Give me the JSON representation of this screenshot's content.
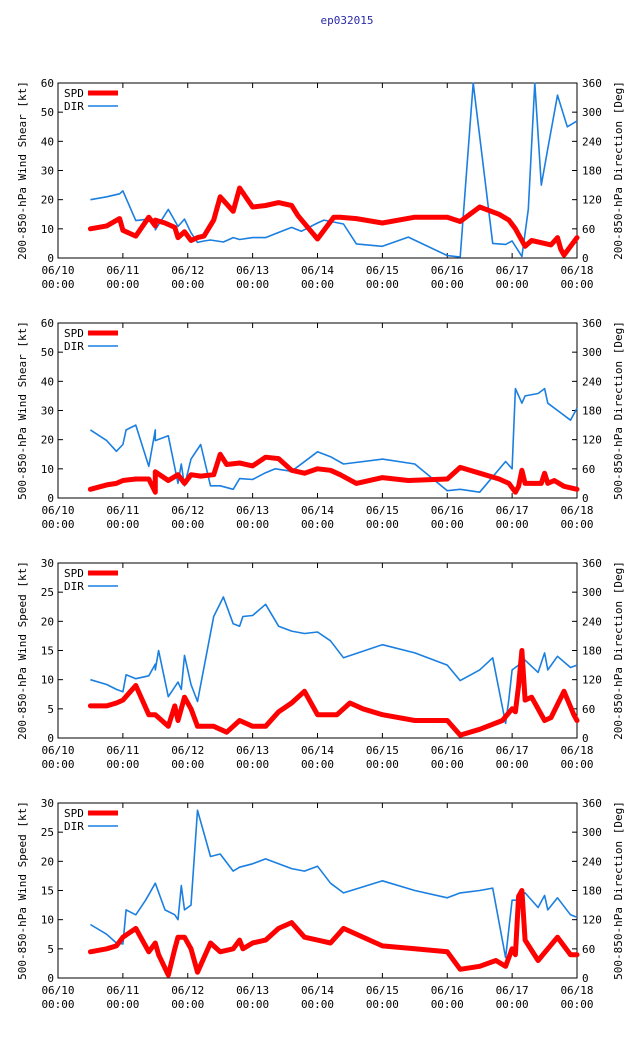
{
  "page_title": "ep032015",
  "colors": {
    "spd": "#ff0000",
    "dir": "#1a7fe0",
    "title": "#2a2aa8"
  },
  "chart_data": [
    {
      "type": "line",
      "ylabel": "200-850-hPa Wind Shear [kt]",
      "y2label": "200-850-hPa Direction [Deg]",
      "ylim": [
        0,
        60
      ],
      "yticks": [
        0,
        10,
        20,
        30,
        40,
        50,
        60
      ],
      "y2lim": [
        0,
        360
      ],
      "y2ticks": [
        0,
        60,
        120,
        180,
        240,
        300,
        360
      ],
      "xlim": [
        0,
        8
      ],
      "xtick_dates": [
        "06/10",
        "06/11",
        "06/12",
        "06/13",
        "06/14",
        "06/15",
        "06/16",
        "06/17",
        "06/18"
      ],
      "xtick_time": "00:00",
      "legend": [
        "SPD",
        "DIR"
      ],
      "series": [
        {
          "name": "SPD",
          "axis": "left",
          "x": [
            0.5,
            0.75,
            0.95,
            1.0,
            1.2,
            1.4,
            1.5,
            1.5,
            1.65,
            1.8,
            1.85,
            1.95,
            2.05,
            2.15,
            2.25,
            2.4,
            2.5,
            2.7,
            2.8,
            3.0,
            3.2,
            3.4,
            3.6,
            3.7,
            4.0,
            4.25,
            4.35,
            4.6,
            5.0,
            5.5,
            6.0,
            6.2,
            6.5,
            6.8,
            6.95,
            7.05,
            7.2,
            7.3,
            7.5,
            7.6,
            7.7,
            7.75,
            7.8,
            8.0
          ],
          "y": [
            10,
            11,
            13.5,
            9.5,
            7.5,
            14,
            11,
            13,
            12,
            10.5,
            7,
            9,
            6,
            7,
            7.5,
            13,
            21,
            16,
            24,
            17.5,
            18,
            19,
            18,
            14.5,
            6.5,
            14,
            14,
            13.5,
            12,
            14,
            14,
            12.5,
            17.5,
            15,
            13,
            10,
            4,
            6,
            5,
            4.5,
            7,
            3,
            1,
            7
          ]
        },
        {
          "name": "DIR",
          "axis": "right",
          "x": [
            0.5,
            0.75,
            0.95,
            1.0,
            1.2,
            1.4,
            1.5,
            1.5,
            1.7,
            1.85,
            1.95,
            2.05,
            2.15,
            2.25,
            2.35,
            2.55,
            2.7,
            2.8,
            3.0,
            3.2,
            3.35,
            3.6,
            3.75,
            4.0,
            4.1,
            4.4,
            4.6,
            5.0,
            5.4,
            6.0,
            6.2,
            6.4,
            6.7,
            6.9,
            7.0,
            7.15,
            7.25,
            7.35,
            7.45,
            7.55,
            7.7,
            7.85,
            8.0
          ],
          "y": [
            120,
            126,
            132,
            138,
            77,
            80,
            63,
            58,
            100,
            65,
            80,
            52,
            32,
            35,
            37,
            33,
            42,
            38,
            42,
            42,
            50,
            63,
            55,
            72,
            78,
            70,
            29,
            24,
            43,
            5,
            2,
            360,
            30,
            28,
            35,
            3,
            100,
            360,
            150,
            225,
            335,
            270,
            282
          ]
        }
      ]
    },
    {
      "type": "line",
      "ylabel": "500-850-hPa Wind Shear [kt]",
      "y2label": "500-850-hPa Direction [Deg]",
      "ylim": [
        0,
        60
      ],
      "yticks": [
        0,
        10,
        20,
        30,
        40,
        50,
        60
      ],
      "y2lim": [
        0,
        360
      ],
      "y2ticks": [
        0,
        60,
        120,
        180,
        240,
        300,
        360
      ],
      "xlim": [
        0,
        8
      ],
      "xtick_dates": [
        "06/10",
        "06/11",
        "06/12",
        "06/13",
        "06/14",
        "06/15",
        "06/16",
        "06/17",
        "06/18"
      ],
      "xtick_time": "00:00",
      "legend": [
        "SPD",
        "DIR"
      ],
      "series": [
        {
          "name": "SPD",
          "axis": "left",
          "x": [
            0.5,
            0.75,
            0.9,
            1.0,
            1.2,
            1.4,
            1.5,
            1.5,
            1.7,
            1.85,
            1.95,
            2.05,
            2.2,
            2.4,
            2.5,
            2.6,
            2.8,
            3.0,
            3.2,
            3.4,
            3.6,
            3.8,
            4.0,
            4.2,
            4.35,
            4.6,
            5.0,
            5.4,
            6.0,
            6.2,
            6.5,
            6.8,
            6.95,
            7.05,
            7.1,
            7.15,
            7.2,
            7.3,
            7.45,
            7.5,
            7.55,
            7.65,
            7.8,
            8.0
          ],
          "y": [
            3,
            4.5,
            5,
            6,
            6.5,
            6.5,
            2,
            9,
            6,
            8,
            5,
            8,
            7.5,
            8,
            15,
            11.5,
            12,
            11,
            14,
            13.5,
            9.5,
            8.5,
            10,
            9.5,
            8,
            5,
            7,
            6,
            6.5,
            10.5,
            8.5,
            6.5,
            5,
            2,
            4,
            9.5,
            5,
            5,
            5,
            8.5,
            5,
            6,
            4,
            3
          ]
        },
        {
          "name": "DIR",
          "axis": "right",
          "x": [
            0.5,
            0.75,
            0.9,
            1.0,
            1.05,
            1.2,
            1.4,
            1.5,
            1.5,
            1.7,
            1.85,
            1.9,
            1.95,
            2.05,
            2.2,
            2.35,
            2.5,
            2.7,
            2.8,
            3.0,
            3.2,
            3.35,
            3.6,
            4.0,
            4.2,
            4.4,
            5.0,
            5.5,
            6.0,
            6.2,
            6.5,
            6.9,
            7.0,
            7.05,
            7.15,
            7.2,
            7.4,
            7.5,
            7.55,
            7.75,
            7.9,
            8.0
          ],
          "y": [
            140,
            118,
            96,
            110,
            140,
            150,
            65,
            140,
            118,
            128,
            30,
            70,
            25,
            80,
            110,
            25,
            25,
            18,
            40,
            38,
            52,
            60,
            55,
            95,
            85,
            70,
            80,
            70,
            15,
            18,
            12,
            75,
            60,
            225,
            195,
            210,
            215,
            225,
            195,
            175,
            160,
            185
          ]
        }
      ]
    },
    {
      "type": "line",
      "ylabel": "200-850-hPa Wind Speed [kt]",
      "y2label": "200-850-hPa Direction [Deg]",
      "ylim": [
        0,
        30
      ],
      "yticks": [
        0,
        5,
        10,
        15,
        20,
        25,
        30
      ],
      "y2lim": [
        0,
        360
      ],
      "y2ticks": [
        0,
        60,
        120,
        180,
        240,
        300,
        360
      ],
      "xlim": [
        0,
        8
      ],
      "xtick_dates": [
        "06/10",
        "06/11",
        "06/12",
        "06/13",
        "06/14",
        "06/15",
        "06/16",
        "06/17",
        "06/18"
      ],
      "xtick_time": "00:00",
      "legend": [
        "SPD",
        "DIR"
      ],
      "series": [
        {
          "name": "SPD",
          "axis": "left",
          "x": [
            0.5,
            0.75,
            0.9,
            1.0,
            1.2,
            1.4,
            1.5,
            1.55,
            1.7,
            1.8,
            1.85,
            1.95,
            2.05,
            2.15,
            2.4,
            2.6,
            2.7,
            2.8,
            3.0,
            3.2,
            3.4,
            3.6,
            3.8,
            4.0,
            4.3,
            4.5,
            4.7,
            5.0,
            5.5,
            6.0,
            6.2,
            6.5,
            6.85,
            7.0,
            7.05,
            7.1,
            7.15,
            7.2,
            7.3,
            7.5,
            7.6,
            7.8,
            7.95,
            8.0
          ],
          "y": [
            5.5,
            5.5,
            6,
            6.5,
            9,
            4,
            4,
            3.5,
            2,
            5.5,
            3,
            7,
            5,
            2,
            2,
            1,
            2,
            3,
            2,
            2,
            4.5,
            6,
            8,
            4,
            4,
            6,
            5,
            4,
            3,
            3,
            0.5,
            1.5,
            3,
            5,
            4.5,
            9,
            15,
            6.5,
            7,
            3,
            3.5,
            8,
            4,
            3
          ]
        },
        {
          "name": "DIR",
          "axis": "right",
          "x": [
            0.5,
            0.75,
            0.9,
            1.0,
            1.05,
            1.2,
            1.4,
            1.5,
            1.5,
            1.55,
            1.7,
            1.85,
            1.9,
            1.95,
            2.05,
            2.15,
            2.4,
            2.55,
            2.7,
            2.8,
            2.85,
            3.0,
            3.2,
            3.4,
            3.6,
            3.8,
            4.0,
            4.2,
            4.4,
            5.0,
            5.5,
            6.0,
            6.2,
            6.5,
            6.7,
            6.9,
            6.95,
            7.0,
            7.05,
            7.1,
            7.15,
            7.2,
            7.4,
            7.5,
            7.55,
            7.7,
            7.9,
            8.0
          ],
          "y": [
            120,
            110,
            100,
            95,
            130,
            122,
            128,
            152,
            140,
            180,
            85,
            115,
            100,
            170,
            110,
            75,
            250,
            290,
            235,
            230,
            250,
            252,
            275,
            230,
            220,
            215,
            218,
            200,
            165,
            192,
            175,
            150,
            118,
            140,
            165,
            30,
            80,
            140,
            145,
            150,
            165,
            160,
            135,
            175,
            140,
            168,
            145,
            150
          ]
        }
      ]
    },
    {
      "type": "line",
      "ylabel": "500-850-hPa Wind Speed [kt]",
      "y2label": "500-850-hPa Direction [Deg]",
      "ylim": [
        0,
        30
      ],
      "yticks": [
        0,
        5,
        10,
        15,
        20,
        25,
        30
      ],
      "y2lim": [
        0,
        360
      ],
      "y2ticks": [
        0,
        60,
        120,
        180,
        240,
        300,
        360
      ],
      "xlim": [
        0,
        8
      ],
      "xtick_dates": [
        "06/10",
        "06/11",
        "06/12",
        "06/13",
        "06/14",
        "06/15",
        "06/16",
        "06/17",
        "06/18"
      ],
      "xtick_time": "00:00",
      "legend": [
        "SPD",
        "DIR"
      ],
      "series": [
        {
          "name": "SPD",
          "axis": "left",
          "x": [
            0.5,
            0.75,
            0.9,
            1.0,
            1.2,
            1.4,
            1.5,
            1.55,
            1.7,
            1.8,
            1.85,
            1.95,
            2.05,
            2.15,
            2.35,
            2.5,
            2.7,
            2.8,
            2.85,
            3.0,
            3.2,
            3.4,
            3.6,
            3.8,
            4.0,
            4.2,
            4.4,
            5.0,
            5.5,
            6.0,
            6.2,
            6.5,
            6.75,
            6.9,
            7.0,
            7.05,
            7.1,
            7.15,
            7.2,
            7.4,
            7.55,
            7.7,
            7.9,
            8.0
          ],
          "y": [
            4.5,
            5,
            5.5,
            7,
            8.5,
            4.5,
            6,
            4,
            0.5,
            5,
            7,
            7,
            5,
            1,
            6,
            4.5,
            5,
            6.5,
            5,
            6,
            6.5,
            8.5,
            9.5,
            7,
            6.5,
            6,
            8.5,
            5.5,
            5,
            4.5,
            1.5,
            2,
            3,
            2,
            5,
            4,
            14,
            15,
            6.5,
            3,
            5,
            7,
            4,
            4
          ]
        },
        {
          "name": "DIR",
          "axis": "right",
          "x": [
            0.5,
            0.75,
            0.9,
            1.0,
            1.05,
            1.2,
            1.35,
            1.5,
            1.65,
            1.8,
            1.85,
            1.9,
            1.95,
            2.05,
            2.15,
            2.35,
            2.5,
            2.7,
            2.8,
            3.0,
            3.2,
            3.4,
            3.6,
            3.8,
            4.0,
            4.2,
            4.4,
            5.0,
            5.5,
            6.0,
            6.2,
            6.5,
            6.7,
            6.9,
            7.0,
            7.05,
            7.1,
            7.15,
            7.2,
            7.4,
            7.5,
            7.55,
            7.7,
            7.9,
            8.0
          ],
          "y": [
            110,
            90,
            72,
            70,
            140,
            130,
            160,
            195,
            140,
            130,
            120,
            190,
            140,
            150,
            345,
            250,
            255,
            220,
            228,
            235,
            245,
            235,
            225,
            220,
            230,
            195,
            175,
            200,
            180,
            165,
            175,
            180,
            185,
            42,
            160,
            160,
            160,
            170,
            175,
            145,
            170,
            140,
            165,
            130,
            125
          ]
        }
      ]
    }
  ]
}
